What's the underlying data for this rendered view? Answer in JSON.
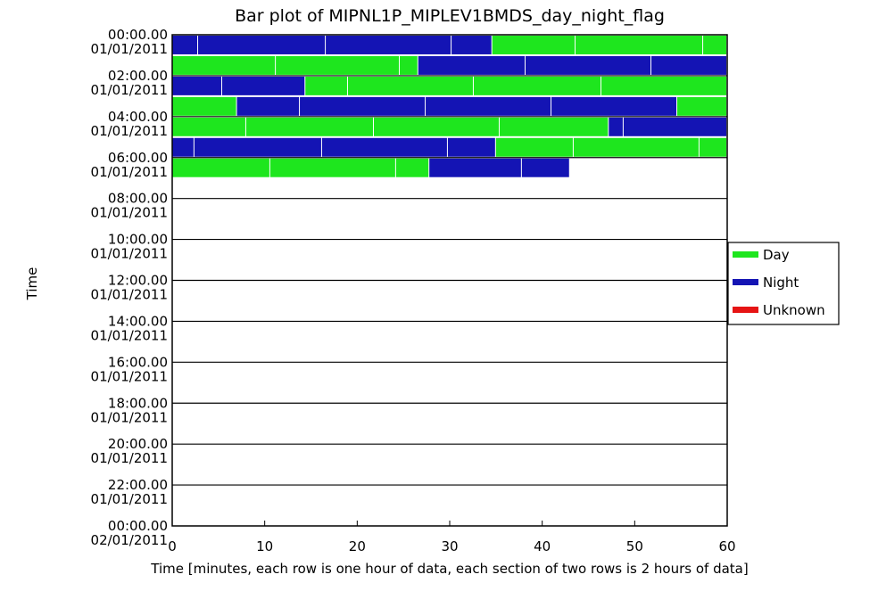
{
  "chart_data": {
    "type": "bar",
    "title": "Bar plot of MIPNL1P_MIPLEV1BMDS_day_night_flag",
    "xlabel": "Time [minutes, each row is one hour of data, each section of two rows is 2 hours of data]",
    "ylabel": "Time",
    "xlim": [
      0,
      60
    ],
    "x_ticks": [
      "0",
      "10",
      "20",
      "30",
      "40",
      "50",
      "60"
    ],
    "y_ticks": [
      {
        "time": "00:00.00",
        "date": "01/01/2011"
      },
      {
        "time": "02:00.00",
        "date": "01/01/2011"
      },
      {
        "time": "04:00.00",
        "date": "01/01/2011"
      },
      {
        "time": "06:00.00",
        "date": "01/01/2011"
      },
      {
        "time": "08:00.00",
        "date": "01/01/2011"
      },
      {
        "time": "10:00.00",
        "date": "01/01/2011"
      },
      {
        "time": "12:00.00",
        "date": "01/01/2011"
      },
      {
        "time": "14:00.00",
        "date": "01/01/2011"
      },
      {
        "time": "16:00.00",
        "date": "01/01/2011"
      },
      {
        "time": "18:00.00",
        "date": "01/01/2011"
      },
      {
        "time": "20:00.00",
        "date": "01/01/2011"
      },
      {
        "time": "22:00.00",
        "date": "01/01/2011"
      },
      {
        "time": "00:00.00",
        "date": "02/01/2011"
      }
    ],
    "legend": [
      {
        "label": "Day",
        "color": "#1ee61e"
      },
      {
        "label": "Night",
        "color": "#1414b4"
      },
      {
        "label": "Unknown",
        "color": "#e61414"
      }
    ],
    "legend_position": "right",
    "rows": [
      {
        "hour": 0,
        "segments": [
          {
            "start": 0,
            "end": 2.8,
            "flag": "Night"
          },
          {
            "start": 2.8,
            "end": 16.6,
            "flag": "Night"
          },
          {
            "start": 16.6,
            "end": 30.2,
            "flag": "Night"
          },
          {
            "start": 30.2,
            "end": 34.6,
            "flag": "Night"
          },
          {
            "start": 34.6,
            "end": 43.6,
            "flag": "Day"
          },
          {
            "start": 43.6,
            "end": 57.4,
            "flag": "Day"
          },
          {
            "start": 57.4,
            "end": 60,
            "flag": "Day"
          }
        ]
      },
      {
        "hour": 1,
        "segments": [
          {
            "start": 0,
            "end": 11.2,
            "flag": "Day"
          },
          {
            "start": 11.2,
            "end": 24.6,
            "flag": "Day"
          },
          {
            "start": 24.6,
            "end": 26.6,
            "flag": "Day"
          },
          {
            "start": 26.6,
            "end": 38.2,
            "flag": "Night"
          },
          {
            "start": 38.2,
            "end": 51.8,
            "flag": "Night"
          },
          {
            "start": 51.8,
            "end": 60,
            "flag": "Night"
          }
        ]
      },
      {
        "hour": 2,
        "segments": [
          {
            "start": 0,
            "end": 5.4,
            "flag": "Night"
          },
          {
            "start": 5.4,
            "end": 14.4,
            "flag": "Night"
          },
          {
            "start": 14.4,
            "end": 19.0,
            "flag": "Day"
          },
          {
            "start": 19.0,
            "end": 32.6,
            "flag": "Day"
          },
          {
            "start": 32.6,
            "end": 46.4,
            "flag": "Day"
          },
          {
            "start": 46.4,
            "end": 60,
            "flag": "Day"
          }
        ]
      },
      {
        "hour": 3,
        "segments": [
          {
            "start": 0,
            "end": 7.0,
            "flag": "Day"
          },
          {
            "start": 7.0,
            "end": 13.8,
            "flag": "Night"
          },
          {
            "start": 13.8,
            "end": 27.4,
            "flag": "Night"
          },
          {
            "start": 27.4,
            "end": 41.0,
            "flag": "Night"
          },
          {
            "start": 41.0,
            "end": 54.6,
            "flag": "Night"
          },
          {
            "start": 54.6,
            "end": 60,
            "flag": "Day"
          }
        ]
      },
      {
        "hour": 4,
        "segments": [
          {
            "start": 0,
            "end": 8.0,
            "flag": "Day"
          },
          {
            "start": 8.0,
            "end": 21.8,
            "flag": "Day"
          },
          {
            "start": 21.8,
            "end": 35.4,
            "flag": "Day"
          },
          {
            "start": 35.4,
            "end": 47.2,
            "flag": "Day"
          },
          {
            "start": 47.2,
            "end": 48.8,
            "flag": "Night"
          },
          {
            "start": 48.8,
            "end": 60,
            "flag": "Night"
          }
        ]
      },
      {
        "hour": 5,
        "segments": [
          {
            "start": 0,
            "end": 2.4,
            "flag": "Night"
          },
          {
            "start": 2.4,
            "end": 16.2,
            "flag": "Night"
          },
          {
            "start": 16.2,
            "end": 29.8,
            "flag": "Night"
          },
          {
            "start": 29.8,
            "end": 35.0,
            "flag": "Night"
          },
          {
            "start": 35.0,
            "end": 43.4,
            "flag": "Day"
          },
          {
            "start": 43.4,
            "end": 57.0,
            "flag": "Day"
          },
          {
            "start": 57.0,
            "end": 60,
            "flag": "Day"
          }
        ]
      },
      {
        "hour": 6,
        "segments": [
          {
            "start": 0,
            "end": 10.6,
            "flag": "Day"
          },
          {
            "start": 10.6,
            "end": 24.2,
            "flag": "Day"
          },
          {
            "start": 24.2,
            "end": 27.8,
            "flag": "Day"
          },
          {
            "start": 27.8,
            "end": 37.8,
            "flag": "Night"
          },
          {
            "start": 37.8,
            "end": 43.0,
            "flag": "Night"
          }
        ]
      }
    ],
    "total_rows": 24
  }
}
